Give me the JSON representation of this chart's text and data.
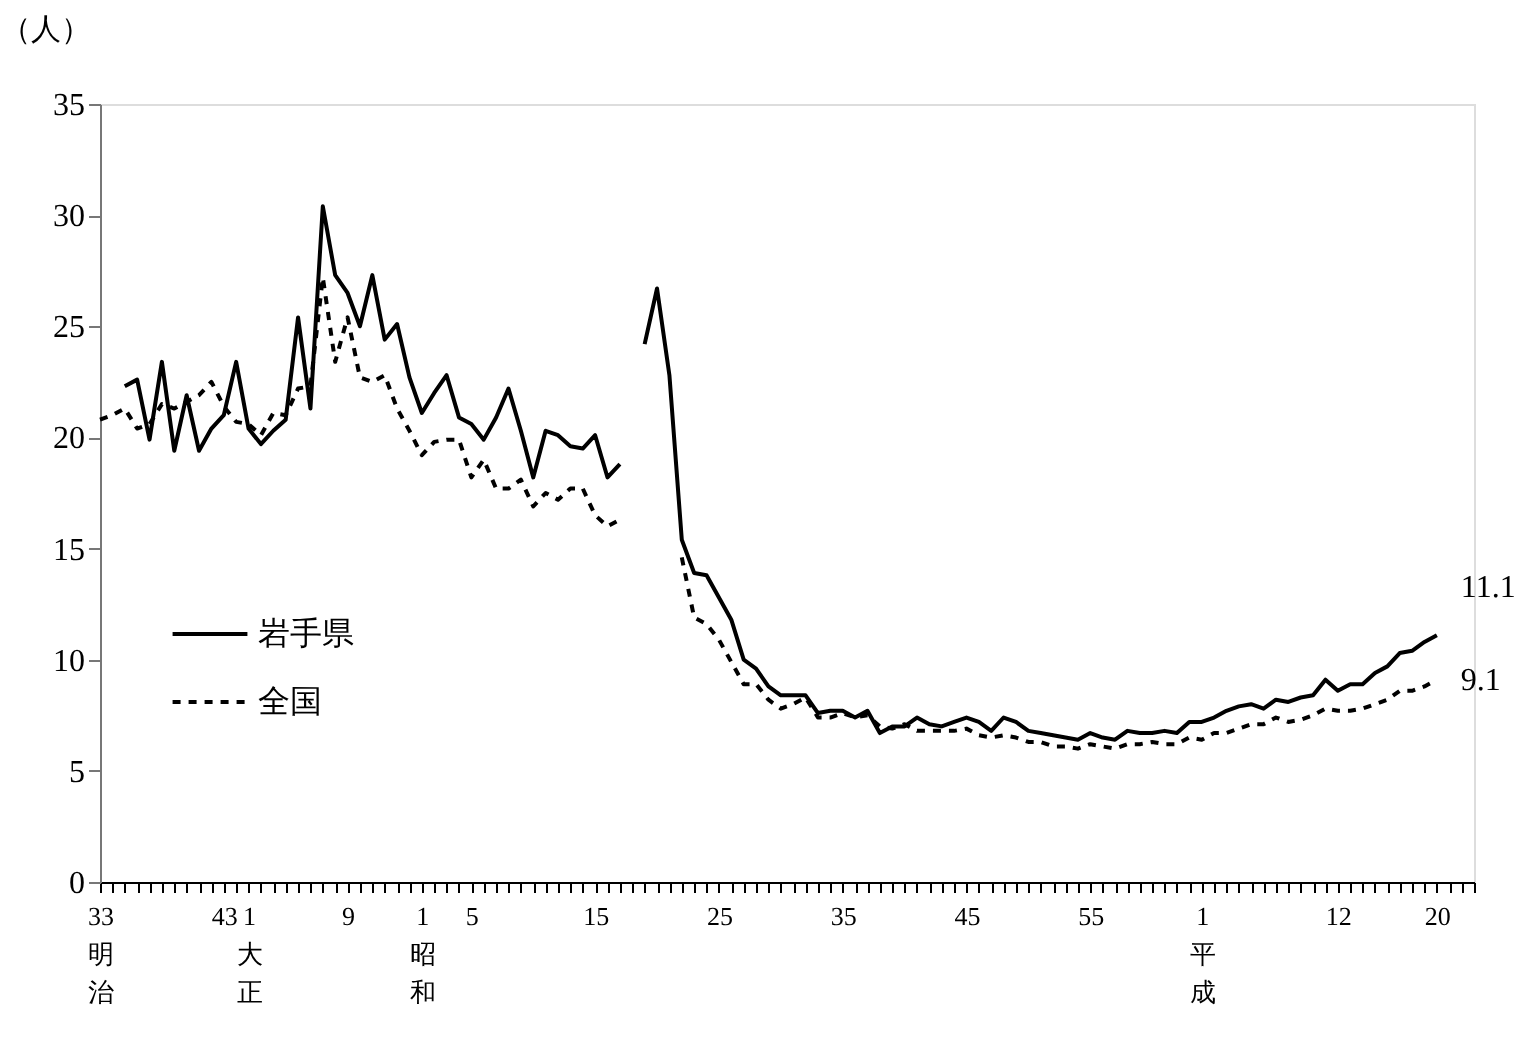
{
  "chart_data": {
    "type": "line",
    "ylabel": "（人）",
    "ylim": [
      0,
      35
    ],
    "yticks": [
      0,
      5,
      10,
      15,
      20,
      25,
      30,
      35
    ],
    "categories": [
      "33明治",
      null,
      null,
      null,
      null,
      null,
      null,
      null,
      null,
      null,
      "43",
      null,
      "1大正",
      null,
      null,
      null,
      null,
      null,
      null,
      null,
      "9",
      null,
      null,
      null,
      null,
      null,
      "1昭和",
      null,
      null,
      null,
      "5",
      null,
      null,
      null,
      null,
      null,
      null,
      null,
      null,
      null,
      "15",
      null,
      null,
      null,
      null,
      null,
      null,
      null,
      null,
      null,
      "25",
      null,
      null,
      null,
      null,
      null,
      null,
      null,
      null,
      null,
      "35",
      null,
      null,
      null,
      null,
      null,
      null,
      null,
      null,
      null,
      "45",
      null,
      null,
      null,
      null,
      null,
      null,
      null,
      null,
      null,
      "55",
      null,
      null,
      null,
      null,
      null,
      null,
      null,
      null,
      "1平成",
      null,
      null,
      null,
      null,
      null,
      null,
      null,
      null,
      null,
      null,
      "12",
      null,
      null,
      null,
      null,
      null,
      null,
      null,
      "20",
      null,
      null,
      null
    ],
    "grid": false,
    "legend": "left",
    "marker": "none",
    "series": [
      {
        "name": "岩手県",
        "color": "#000000",
        "line_style": "solid",
        "values": [
          null,
          null,
          22.3,
          22.6,
          19.9,
          23.4,
          19.4,
          21.9,
          19.4,
          20.4,
          21.0,
          23.4,
          20.4,
          19.7,
          20.3,
          20.8,
          25.4,
          21.3,
          30.4,
          27.3,
          26.5,
          25.0,
          27.3,
          24.4,
          25.1,
          22.7,
          21.1,
          22.0,
          22.8,
          20.9,
          20.6,
          19.9,
          20.9,
          22.2,
          20.3,
          18.2,
          20.3,
          20.1,
          19.6,
          19.5,
          20.1,
          18.2,
          18.8,
          null,
          24.2,
          26.7,
          22.8,
          15.4,
          13.9,
          13.8,
          12.8,
          11.8,
          10.0,
          9.6,
          8.8,
          8.4,
          8.4,
          8.4,
          7.6,
          7.7,
          7.7,
          7.4,
          7.7,
          6.7,
          7.0,
          7.0,
          7.4,
          7.1,
          7.0,
          7.2,
          7.4,
          7.2,
          6.8,
          7.4,
          7.2,
          6.8,
          6.7,
          6.6,
          6.5,
          6.4,
          6.7,
          6.5,
          6.4,
          6.8,
          6.7,
          6.7,
          6.8,
          6.7,
          7.2,
          7.2,
          7.4,
          7.7,
          7.9,
          8.0,
          7.8,
          8.2,
          8.1,
          8.3,
          8.4,
          9.1,
          8.6,
          8.9,
          8.9,
          9.4,
          9.7,
          10.3,
          10.4,
          10.8,
          11.1,
          null,
          null,
          null
        ]
      },
      {
        "name": "全国",
        "color": "#000000",
        "line_style": "dashed",
        "values": [
          20.8,
          21.0,
          21.3,
          20.4,
          20.6,
          21.5,
          21.3,
          21.6,
          21.9,
          22.5,
          21.4,
          20.7,
          20.6,
          20.1,
          21.1,
          21.0,
          22.2,
          22.3,
          27.2,
          23.4,
          25.4,
          22.7,
          22.5,
          22.8,
          21.3,
          20.3,
          19.2,
          19.8,
          19.9,
          19.9,
          18.2,
          19.0,
          17.7,
          17.7,
          18.1,
          16.9,
          17.5,
          17.2,
          17.7,
          17.7,
          16.5,
          16.0,
          16.3,
          null,
          null,
          null,
          null,
          14.6,
          11.9,
          11.6,
          10.9,
          9.9,
          8.9,
          8.9,
          8.2,
          7.8,
          8.0,
          8.3,
          7.4,
          7.4,
          7.6,
          7.4,
          7.5,
          7.0,
          6.9,
          7.1,
          6.8,
          6.8,
          6.8,
          6.8,
          6.9,
          6.6,
          6.5,
          6.6,
          6.5,
          6.3,
          6.3,
          6.1,
          6.1,
          6.0,
          6.2,
          6.1,
          6.0,
          6.2,
          6.2,
          6.3,
          6.2,
          6.2,
          6.5,
          6.4,
          6.7,
          6.7,
          6.9,
          7.1,
          7.1,
          7.4,
          7.2,
          7.3,
          7.5,
          7.8,
          7.7,
          7.7,
          7.8,
          8.0,
          8.2,
          8.6,
          8.6,
          8.8,
          9.1,
          null,
          null,
          null
        ]
      }
    ],
    "annotations": [
      {
        "text": "11.1",
        "x": "20",
        "y": 11.1
      },
      {
        "text": "9.1",
        "x": "20",
        "y": 9.1
      }
    ]
  }
}
